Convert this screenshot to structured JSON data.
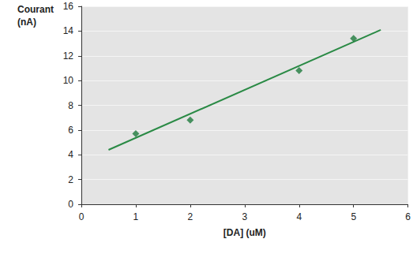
{
  "chart_data": {
    "type": "scatter",
    "x_label": "[DA] (uM)",
    "y_label": "Courant\n(nA)",
    "series": [
      {
        "type": "scatter",
        "color": "#1e7b3c",
        "marker": "diamond",
        "x": [
          1,
          2,
          4,
          5
        ],
        "values": [
          5.7,
          6.8,
          10.8,
          13.4
        ]
      },
      {
        "type": "line",
        "color": "#2a8a45",
        "line_style": "solid",
        "x": [
          0.5,
          5.5
        ],
        "values": [
          4.4,
          14.1
        ]
      }
    ],
    "xlim": [
      0,
      6
    ],
    "xticks": [
      0,
      1,
      2,
      3,
      4,
      5,
      6
    ],
    "ylim": [
      0,
      16
    ],
    "yticks": [
      0,
      2,
      4,
      6,
      8,
      10,
      12,
      14,
      16
    ],
    "grid": true
  }
}
